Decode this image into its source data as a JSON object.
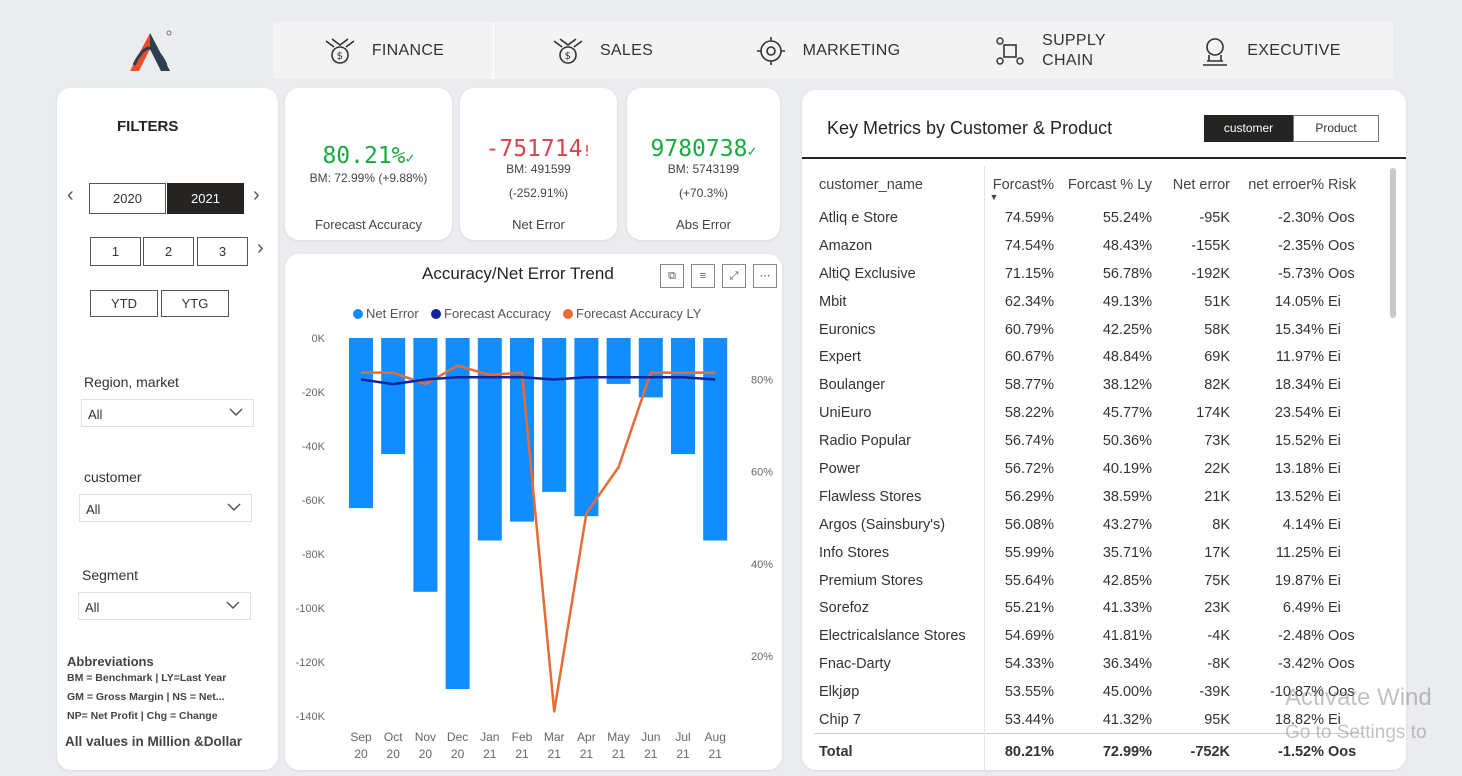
{
  "nav": {
    "items": [
      {
        "label": "FINANCE",
        "icon": "finance-icon"
      },
      {
        "label": "SALES",
        "icon": "sales-icon"
      },
      {
        "label": "MARKETING",
        "icon": "marketing-icon"
      },
      {
        "label": "SUPPLY",
        "label2": "CHAIN",
        "icon": "supply-chain-icon"
      },
      {
        "label": "EXECUTIVE",
        "icon": "executive-icon"
      }
    ]
  },
  "filters": {
    "title": "FILTERS",
    "years": [
      "2020",
      "2021"
    ],
    "selected_year": "2021",
    "quarters": [
      "1",
      "2",
      "3"
    ],
    "period_buttons": [
      "YTD",
      "YTG"
    ],
    "slicers": [
      {
        "label": "Region, market",
        "value": "All"
      },
      {
        "label": "customer",
        "value": "All"
      },
      {
        "label": "Segment",
        "value": "All"
      }
    ],
    "abbreviations_title": "Abbreviations",
    "abbreviations": [
      "BM = Benchmark | LY=Last Year",
      "GM = Gross Margin | NS = Net...",
      "NP= Net Profit | Chg = Change"
    ],
    "values_note": "All values in Million &Dollar"
  },
  "kpis": [
    {
      "value": "80.21%",
      "mark": "✓",
      "bm": "BM: 72.99% (+9.88%)",
      "bm2": "",
      "label": "Forecast Accuracy",
      "status": "good"
    },
    {
      "value": "-751714",
      "mark": "!",
      "bm": "BM: 491599",
      "bm2": "(-252.91%)",
      "label": "Net Error",
      "status": "bad"
    },
    {
      "value": "9780738",
      "mark": "✓",
      "bm": "BM: 5743199",
      "bm2": "(+70.3%)",
      "label": "Abs Error",
      "status": "good"
    }
  ],
  "colors": {
    "good": "#1aab40",
    "bad": "#d64550",
    "bar": "#118dff",
    "line_fa": "#12239e",
    "line_ly": "#e66c37"
  },
  "chart_data": {
    "type": "bar",
    "title": "Accuracy/Net Error Trend",
    "toolbar": [
      "copy-icon",
      "filter-icon",
      "focus-icon",
      "more-icon"
    ],
    "legend": [
      "Net Error",
      "Forecast Accuracy",
      "Forecast Accuracy LY"
    ],
    "categories": [
      [
        "Sep",
        "20"
      ],
      [
        "Oct",
        "20"
      ],
      [
        "Nov",
        "20"
      ],
      [
        "Dec",
        "20"
      ],
      [
        "Jan",
        "21"
      ],
      [
        "Feb",
        "21"
      ],
      [
        "Mar",
        "21"
      ],
      [
        "Apr",
        "21"
      ],
      [
        "May",
        "21"
      ],
      [
        "Jun",
        "21"
      ],
      [
        "Jul",
        "21"
      ],
      [
        "Aug",
        "21"
      ]
    ],
    "y_left": {
      "ticks": [
        "0K",
        "-20K",
        "-40K",
        "-60K",
        "-80K",
        "-100K",
        "-120K",
        "-140K"
      ],
      "range": [
        -140,
        0
      ],
      "unit": "K"
    },
    "y_right": {
      "ticks": [
        "80%",
        "60%",
        "40%",
        "20%"
      ],
      "range": [
        7,
        89
      ],
      "unit": "%"
    },
    "series": [
      {
        "name": "Net Error",
        "type": "bar",
        "values": [
          -63,
          -43,
          -94,
          -130,
          -75,
          -68,
          -57,
          -66,
          -17,
          -22,
          -43,
          -75
        ]
      },
      {
        "name": "Forecast Accuracy",
        "type": "line",
        "values": [
          80,
          79,
          80,
          80.5,
          80.5,
          80.5,
          80,
          80.5,
          80.5,
          80.5,
          80.5,
          80
        ]
      },
      {
        "name": "Forecast Accuracy LY",
        "type": "line",
        "values": [
          81.5,
          81.5,
          79,
          83,
          81,
          81.5,
          8,
          51,
          61,
          81.5,
          81.5,
          81.5
        ]
      }
    ]
  },
  "table": {
    "title": "Key Metrics by Customer & Product",
    "toggle": [
      "customer",
      "Product"
    ],
    "columns": [
      "customer_name",
      "Forcast%",
      "Forcast % Ly",
      "Net error",
      "net erroer%",
      "Risk"
    ],
    "rows": [
      [
        "Atliq e Store",
        "74.59%",
        "55.24%",
        "-95K",
        "-2.30%",
        "Oos"
      ],
      [
        "Amazon",
        "74.54%",
        "48.43%",
        "-155K",
        "-2.35%",
        "Oos"
      ],
      [
        "AltiQ Exclusive",
        "71.15%",
        "56.78%",
        "-192K",
        "-5.73%",
        "Oos"
      ],
      [
        "Mbit",
        "62.34%",
        "49.13%",
        "51K",
        "14.05%",
        "Ei"
      ],
      [
        "Euronics",
        "60.79%",
        "42.25%",
        "58K",
        "15.34%",
        "Ei"
      ],
      [
        "Expert",
        "60.67%",
        "48.84%",
        "69K",
        "11.97%",
        "Ei"
      ],
      [
        "Boulanger",
        "58.77%",
        "38.12%",
        "82K",
        "18.34%",
        "Ei"
      ],
      [
        "UniEuro",
        "58.22%",
        "45.77%",
        "174K",
        "23.54%",
        "Ei"
      ],
      [
        "Radio Popular",
        "56.74%",
        "50.36%",
        "73K",
        "15.52%",
        "Ei"
      ],
      [
        "Power",
        "56.72%",
        "40.19%",
        "22K",
        "13.18%",
        "Ei"
      ],
      [
        "Flawless Stores",
        "56.29%",
        "38.59%",
        "21K",
        "13.52%",
        "Ei"
      ],
      [
        "Argos (Sainsbury's)",
        "56.08%",
        "43.27%",
        "8K",
        "4.14%",
        "Ei"
      ],
      [
        "Info Stores",
        "55.99%",
        "35.71%",
        "17K",
        "11.25%",
        "Ei"
      ],
      [
        "Premium Stores",
        "55.64%",
        "42.85%",
        "75K",
        "19.87%",
        "Ei"
      ],
      [
        "Sorefoz",
        "55.21%",
        "41.33%",
        "23K",
        "6.49%",
        "Ei"
      ],
      [
        "Electricalslance Stores",
        "54.69%",
        "41.81%",
        "-4K",
        "-2.48%",
        "Oos"
      ],
      [
        "Fnac-Darty",
        "54.33%",
        "36.34%",
        "-8K",
        "-3.42%",
        "Oos"
      ],
      [
        "Elkjøp",
        "53.55%",
        "45.00%",
        "-39K",
        "-10.87%",
        "Oos"
      ],
      [
        "Chip 7",
        "53.44%",
        "41.32%",
        "95K",
        "18.82%",
        "Ei"
      ]
    ],
    "total": [
      "Total",
      "80.21%",
      "72.99%",
      "-752K",
      "-1.52%",
      "Oos"
    ]
  },
  "watermark": {
    "line1": "Activate Wind",
    "line2": "Go to Settings to"
  }
}
